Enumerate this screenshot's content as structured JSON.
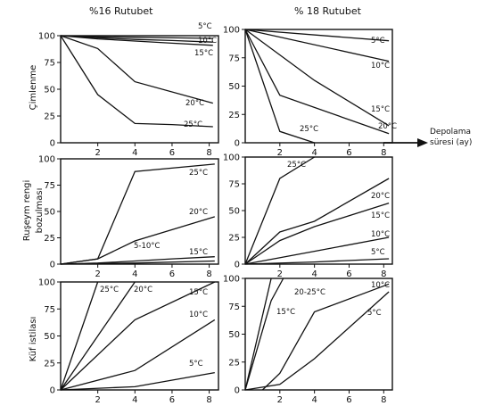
{
  "figure": {
    "col_titles": [
      "%16 Rutubet",
      "% 18 Rutubet"
    ],
    "row_labels": [
      [
        "Çimlenme"
      ],
      [
        "Ruşeym rengi",
        "bozulması"
      ],
      [
        "Küf istilası"
      ]
    ],
    "x_axis_label": [
      "Depolama",
      "süresi (ay)"
    ]
  },
  "chart_data": [
    {
      "type": "line",
      "id": "p00",
      "ylabel": "Çimlenme",
      "xlim": [
        0,
        8.5
      ],
      "ylim": [
        0,
        100
      ],
      "xticks": [
        2,
        4,
        6,
        8
      ],
      "yticks": [
        0,
        25,
        50,
        75,
        100
      ],
      "series": [
        {
          "name": "5°C",
          "x": [
            0,
            2,
            4,
            6,
            8.2
          ],
          "y": [
            100,
            99,
            98.5,
            98,
            97.5
          ]
        },
        {
          "name": "10°C",
          "x": [
            0,
            2,
            4,
            6,
            8.2
          ],
          "y": [
            100,
            98,
            96.5,
            95.5,
            94
          ]
        },
        {
          "name": "15°C",
          "x": [
            0,
            2,
            4,
            6,
            8.2
          ],
          "y": [
            100,
            97,
            95,
            93,
            91
          ]
        },
        {
          "name": "20°C",
          "x": [
            0,
            2,
            4,
            8.2
          ],
          "y": [
            100,
            88,
            57,
            37
          ]
        },
        {
          "name": "25°C",
          "x": [
            0,
            2,
            4,
            6,
            8.2
          ],
          "y": [
            100,
            45,
            18,
            17,
            15
          ]
        }
      ]
    },
    {
      "type": "line",
      "id": "p01",
      "xlim": [
        0,
        8.5
      ],
      "ylim": [
        0,
        100
      ],
      "xticks": [
        2,
        4,
        6,
        8
      ],
      "yticks": [
        0,
        25,
        50,
        75,
        100
      ],
      "series": [
        {
          "name": "5°C",
          "x": [
            0,
            8.3
          ],
          "y": [
            100,
            90
          ]
        },
        {
          "name": "10°C",
          "x": [
            0,
            8.3
          ],
          "y": [
            100,
            72
          ]
        },
        {
          "name": "15°C",
          "x": [
            0,
            4,
            8.3
          ],
          "y": [
            100,
            55,
            15
          ]
        },
        {
          "name": "20°C",
          "x": [
            0,
            2,
            8.3
          ],
          "y": [
            100,
            42,
            8
          ]
        },
        {
          "name": "25°C",
          "x": [
            0,
            2,
            4
          ],
          "y": [
            100,
            10,
            0
          ]
        }
      ]
    },
    {
      "type": "line",
      "id": "p10",
      "ylabel": "Ruşeym rengi bozulması",
      "xlim": [
        0,
        8.5
      ],
      "ylim": [
        0,
        100
      ],
      "xticks": [
        2,
        4,
        6,
        8
      ],
      "yticks": [
        0,
        25,
        50,
        75,
        100
      ],
      "series": [
        {
          "name": "25°C",
          "x": [
            0,
            2,
            4,
            8.3
          ],
          "y": [
            0,
            5,
            88,
            95
          ]
        },
        {
          "name": "20°C",
          "x": [
            0,
            2,
            4,
            8.3
          ],
          "y": [
            0,
            5,
            22,
            45
          ]
        },
        {
          "name": "5-10°C",
          "x": [
            0,
            2,
            4,
            6,
            8.3
          ],
          "y": [
            0,
            1,
            3,
            5,
            7
          ]
        },
        {
          "name": "15°C",
          "x": [
            0,
            4,
            8.3
          ],
          "y": [
            0,
            1,
            3
          ]
        }
      ]
    },
    {
      "type": "line",
      "id": "p11",
      "xlim": [
        0,
        8.5
      ],
      "ylim": [
        0,
        100
      ],
      "xticks": [
        2,
        4,
        6,
        8
      ],
      "yticks": [
        0,
        25,
        50,
        75,
        100
      ],
      "series": [
        {
          "name": "25°C",
          "x": [
            0,
            2,
            4
          ],
          "y": [
            0,
            80,
            100
          ]
        },
        {
          "name": "20°C",
          "x": [
            0,
            2,
            4,
            8.3
          ],
          "y": [
            0,
            30,
            40,
            80
          ]
        },
        {
          "name": "15°C",
          "x": [
            0,
            2,
            4,
            8.3
          ],
          "y": [
            0,
            22,
            35,
            57
          ]
        },
        {
          "name": "10°C",
          "x": [
            0,
            4,
            8.3
          ],
          "y": [
            0,
            12,
            25
          ]
        },
        {
          "name": "5°C",
          "x": [
            0,
            4,
            8.3
          ],
          "y": [
            0,
            2,
            5
          ]
        }
      ]
    },
    {
      "type": "line",
      "id": "p20",
      "ylabel": "Küf istilası",
      "xlim": [
        0,
        8.5
      ],
      "ylim": [
        0,
        100
      ],
      "xticks": [
        2,
        4,
        6,
        8
      ],
      "yticks": [
        0,
        25,
        50,
        75,
        100
      ],
      "series": [
        {
          "name": "25°C",
          "x": [
            0,
            2
          ],
          "y": [
            0,
            100
          ]
        },
        {
          "name": "20°C",
          "x": [
            0,
            4
          ],
          "y": [
            0,
            100
          ]
        },
        {
          "name": "15°C",
          "x": [
            0,
            4,
            8.3
          ],
          "y": [
            0,
            65,
            100
          ]
        },
        {
          "name": "10°C",
          "x": [
            0,
            4,
            8.3
          ],
          "y": [
            0,
            18,
            65
          ]
        },
        {
          "name": "5°C",
          "x": [
            0,
            4,
            8.3
          ],
          "y": [
            0,
            3,
            16
          ]
        }
      ]
    },
    {
      "type": "line",
      "id": "p21",
      "xlim": [
        0,
        8.5
      ],
      "ylim": [
        0,
        100
      ],
      "xticks": [
        2,
        4,
        6,
        8
      ],
      "yticks": [
        0,
        25,
        50,
        75,
        100
      ],
      "series": [
        {
          "name": "20-25°C",
          "x": [
            0,
            1.5
          ],
          "y": [
            0,
            100
          ]
        },
        {
          "name": "15°C",
          "x": [
            0,
            1.5,
            2.2
          ],
          "y": [
            0,
            80,
            100
          ]
        },
        {
          "name": "10°C",
          "x": [
            1,
            2,
            4,
            8.3
          ],
          "y": [
            0,
            15,
            70,
            95
          ]
        },
        {
          "name": "5°C",
          "x": [
            0,
            2,
            4,
            8.3
          ],
          "y": [
            0,
            5,
            28,
            88
          ]
        }
      ]
    }
  ]
}
